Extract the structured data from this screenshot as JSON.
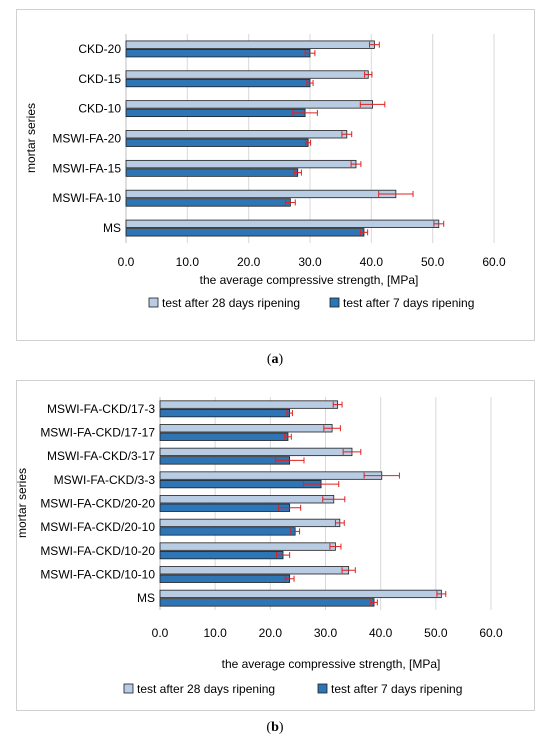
{
  "colors": {
    "bar28": "#b8cce4",
    "bar7": "#2e75b6",
    "bar_border": "#1f1f1f",
    "error": "#e02020",
    "grid": "#d9d9d9"
  },
  "chart_data": [
    {
      "type": "bar",
      "orientation": "horizontal",
      "caption": "a",
      "xlabel": "the average compressive strength, [MPa]",
      "ylabel": "mortar series",
      "xlim": [
        0,
        60
      ],
      "xticks": [
        "0.0",
        "10.0",
        "20.0",
        "30.0",
        "40.0",
        "50.0",
        "60.0"
      ],
      "grid": true,
      "legend_position": "bottom",
      "categories": [
        "CKD-20",
        "CKD-15",
        "CKD-10",
        "MSWI-FA-20",
        "MSWI-FA-15",
        "MSWI-FA-10",
        "MS"
      ],
      "series": [
        {
          "name": "test after 28 days ripening",
          "values": [
            40.5,
            39.5,
            40.2,
            36.0,
            37.5,
            44.0,
            51.0
          ],
          "errors": [
            0.8,
            0.6,
            2.0,
            0.8,
            0.8,
            2.8,
            0.8
          ]
        },
        {
          "name": "test after 7 days ripening",
          "values": [
            30.0,
            30.0,
            29.2,
            29.7,
            28.0,
            26.8,
            38.8
          ],
          "errors": [
            0.8,
            0.5,
            2.0,
            0.4,
            0.6,
            0.8,
            0.6
          ]
        }
      ]
    },
    {
      "type": "bar",
      "orientation": "horizontal",
      "caption": "b",
      "xlabel": "the average compressive strength, [MPa]",
      "ylabel": "mortar series",
      "xlim": [
        0,
        60
      ],
      "xticks": [
        "0.0",
        "10.0",
        "20.0",
        "30.0",
        "40.0",
        "50.0",
        "60.0"
      ],
      "grid": true,
      "legend_position": "bottom",
      "categories": [
        "MSWI-FA-CKD/17-3",
        "MSWI-FA-CKD/17-17",
        "MSWI-FA-CKD/3-17",
        "MSWI-FA-CKD/3-3",
        "MSWI-FA-CKD/20-20",
        "MSWI-FA-CKD/20-10",
        "MSWI-FA-CKD/10-20",
        "MSWI-FA-CKD/10-10",
        "MS"
      ],
      "series": [
        {
          "name": "test after 28 days ripening",
          "values": [
            32.2,
            31.2,
            34.8,
            40.2,
            31.5,
            32.6,
            31.8,
            34.2,
            51.0
          ],
          "errors": [
            0.8,
            1.5,
            1.6,
            3.2,
            2.0,
            0.8,
            1.0,
            1.2,
            0.8
          ]
        },
        {
          "name": "test after 7 days ripening",
          "values": [
            23.5,
            23.2,
            23.5,
            29.2,
            23.5,
            24.5,
            22.3,
            23.5,
            38.8
          ],
          "errors": [
            0.5,
            0.6,
            2.6,
            3.2,
            2.0,
            0.8,
            1.2,
            0.8,
            0.6
          ]
        }
      ]
    }
  ]
}
